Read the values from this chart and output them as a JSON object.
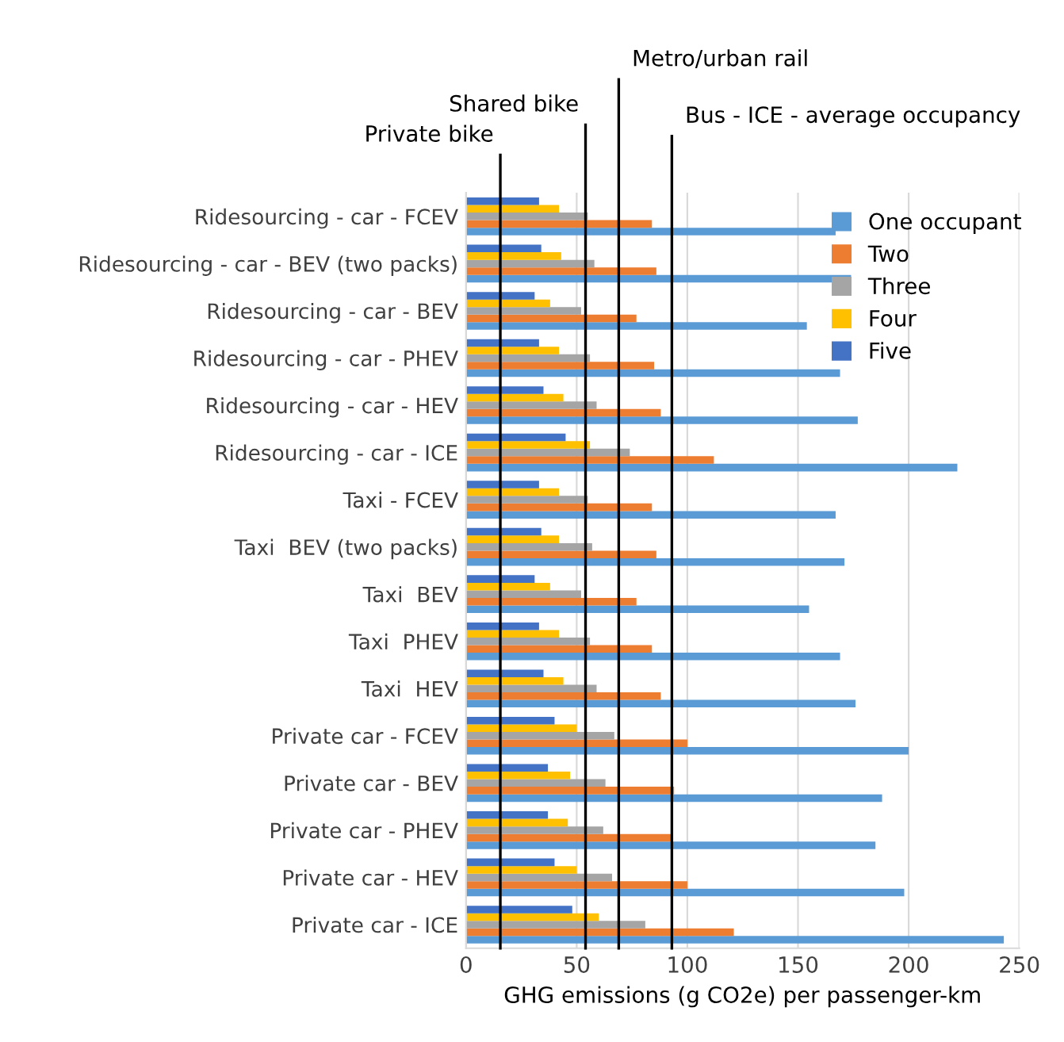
{
  "chart_data": {
    "type": "bar",
    "orientation": "horizontal",
    "xlabel": "GHG emissions (g CO2e) per passenger-km",
    "categories": [
      "Ridesourcing - car - FCEV",
      "Ridesourcing - car - BEV (two packs)",
      "Ridesourcing - car - BEV",
      "Ridesourcing - car - PHEV",
      "Ridesourcing - car - HEV",
      "Ridesourcing - car - ICE",
      "Taxi - FCEV",
      "Taxi  BEV (two packs)",
      "Taxi  BEV",
      "Taxi  PHEV",
      "Taxi  HEV",
      "Private car - FCEV",
      "Private car - BEV",
      "Private car - PHEV",
      "Private car - HEV",
      "Private car - ICE"
    ],
    "series": [
      {
        "name": "One occupant",
        "color": "#5b9bd5",
        "values": [
          167,
          174,
          154,
          169,
          177,
          222,
          167,
          171,
          155,
          169,
          176,
          200,
          188,
          185,
          198,
          243
        ]
      },
      {
        "name": "Two",
        "color": "#ed7d31",
        "values": [
          84,
          86,
          77,
          85,
          88,
          112,
          84,
          86,
          77,
          84,
          88,
          100,
          94,
          93,
          100,
          121
        ]
      },
      {
        "name": "Three",
        "color": "#a5a5a5",
        "values": [
          55,
          58,
          52,
          56,
          59,
          74,
          55,
          57,
          52,
          56,
          59,
          67,
          63,
          62,
          66,
          81
        ]
      },
      {
        "name": "Four",
        "color": "#ffc000",
        "values": [
          42,
          43,
          38,
          42,
          44,
          56,
          42,
          42,
          38,
          42,
          44,
          50,
          47,
          46,
          50,
          60
        ]
      },
      {
        "name": "Five",
        "color": "#4472c4",
        "values": [
          33,
          34,
          31,
          33,
          35,
          45,
          33,
          34,
          31,
          33,
          35,
          40,
          37,
          37,
          40,
          48
        ]
      }
    ],
    "xlim": [
      0,
      250
    ],
    "xticks": [
      0,
      50,
      100,
      150,
      200,
      250
    ],
    "grid": "x",
    "legend": "top right",
    "ref_lines": [
      {
        "axis": "x",
        "value": 15.5,
        "label": "Private bike",
        "color": "#000000"
      },
      {
        "axis": "x",
        "value": 54,
        "label": "Shared bike",
        "color": "#000000"
      },
      {
        "axis": "x",
        "value": 69,
        "label": "Metro/urban rail",
        "color": "#000000"
      },
      {
        "axis": "x",
        "value": 93,
        "label": "Bus - ICE - average occupancy",
        "color": "#000000"
      }
    ]
  }
}
